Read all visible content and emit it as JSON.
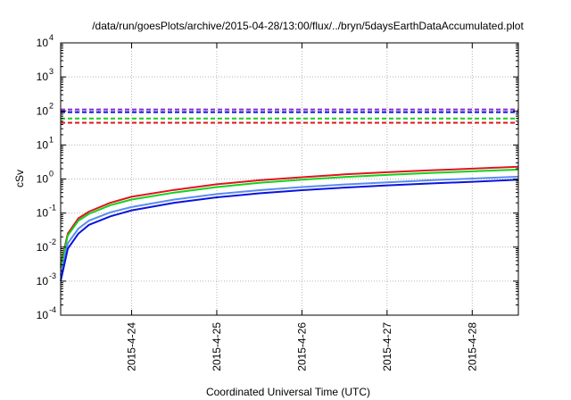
{
  "chart_data": {
    "type": "line",
    "title": "/data/run/goesPlots/archive/2015-04-28/13:00/flux/../bryn/5daysEarthDataAccumulated.plot",
    "xlabel": "Coordinated Universal Time (UTC)",
    "ylabel": "cSv",
    "yscale": "log",
    "ylim": [
      0.0001,
      10000
    ],
    "xlim": [
      "2015-04-23 04:00",
      "2015-04-28 13:00"
    ],
    "grid": true,
    "x_ticks": [
      "2015-4-24",
      "2015-4-25",
      "2015-4-26",
      "2015-4-27",
      "2015-4-28"
    ],
    "y_ticks": [
      {
        "value": 0.0001,
        "base": "10",
        "exp": "-4"
      },
      {
        "value": 0.001,
        "base": "10",
        "exp": "-3"
      },
      {
        "value": 0.01,
        "base": "10",
        "exp": "-2"
      },
      {
        "value": 0.1,
        "base": "10",
        "exp": "-1"
      },
      {
        "value": 1,
        "base": "10",
        "exp": "0"
      },
      {
        "value": 10,
        "base": "10",
        "exp": "1"
      },
      {
        "value": 100,
        "base": "10",
        "exp": "2"
      },
      {
        "value": 1000,
        "base": "10",
        "exp": "3"
      },
      {
        "value": 10000,
        "base": "10",
        "exp": "4"
      }
    ],
    "x_sample": [
      "2015-04-23 04:00",
      "2015-04-23 06:00",
      "2015-04-23 09:00",
      "2015-04-23 12:00",
      "2015-04-23 18:00",
      "2015-04-24 00:00",
      "2015-04-24 12:00",
      "2015-04-25 00:00",
      "2015-04-25 12:00",
      "2015-04-26 00:00",
      "2015-04-26 12:00",
      "2015-04-27 00:00",
      "2015-04-27 12:00",
      "2015-04-28 00:00",
      "2015-04-28 13:00"
    ],
    "series": [
      {
        "color": "#e0141e",
        "style": "solid",
        "values": [
          0.003,
          0.025,
          0.07,
          0.11,
          0.2,
          0.3,
          0.48,
          0.7,
          0.92,
          1.13,
          1.37,
          1.58,
          1.8,
          2.02,
          2.3
        ]
      },
      {
        "color": "#14d21e",
        "style": "solid",
        "values": [
          0.0025,
          0.022,
          0.06,
          0.095,
          0.17,
          0.25,
          0.4,
          0.58,
          0.77,
          0.95,
          1.14,
          1.32,
          1.5,
          1.68,
          1.9
        ]
      },
      {
        "color": "#5a8cf0",
        "style": "solid",
        "values": [
          0.0015,
          0.013,
          0.035,
          0.06,
          0.105,
          0.15,
          0.25,
          0.36,
          0.47,
          0.58,
          0.69,
          0.8,
          0.92,
          1.03,
          1.17
        ]
      },
      {
        "color": "#0a14dc",
        "style": "solid",
        "values": [
          0.001,
          0.009,
          0.025,
          0.045,
          0.08,
          0.12,
          0.2,
          0.29,
          0.38,
          0.47,
          0.56,
          0.65,
          0.74,
          0.83,
          0.95
        ]
      },
      {
        "color": "#8c28d2",
        "style": "dashed",
        "values": [
          110,
          110
        ]
      },
      {
        "color": "#0a14dc",
        "style": "dashed",
        "values": [
          92,
          92
        ]
      },
      {
        "color": "#14d21e",
        "style": "dashed",
        "values": [
          60,
          60
        ]
      },
      {
        "color": "#e0141e",
        "style": "dashed",
        "values": [
          45,
          45
        ]
      }
    ]
  }
}
